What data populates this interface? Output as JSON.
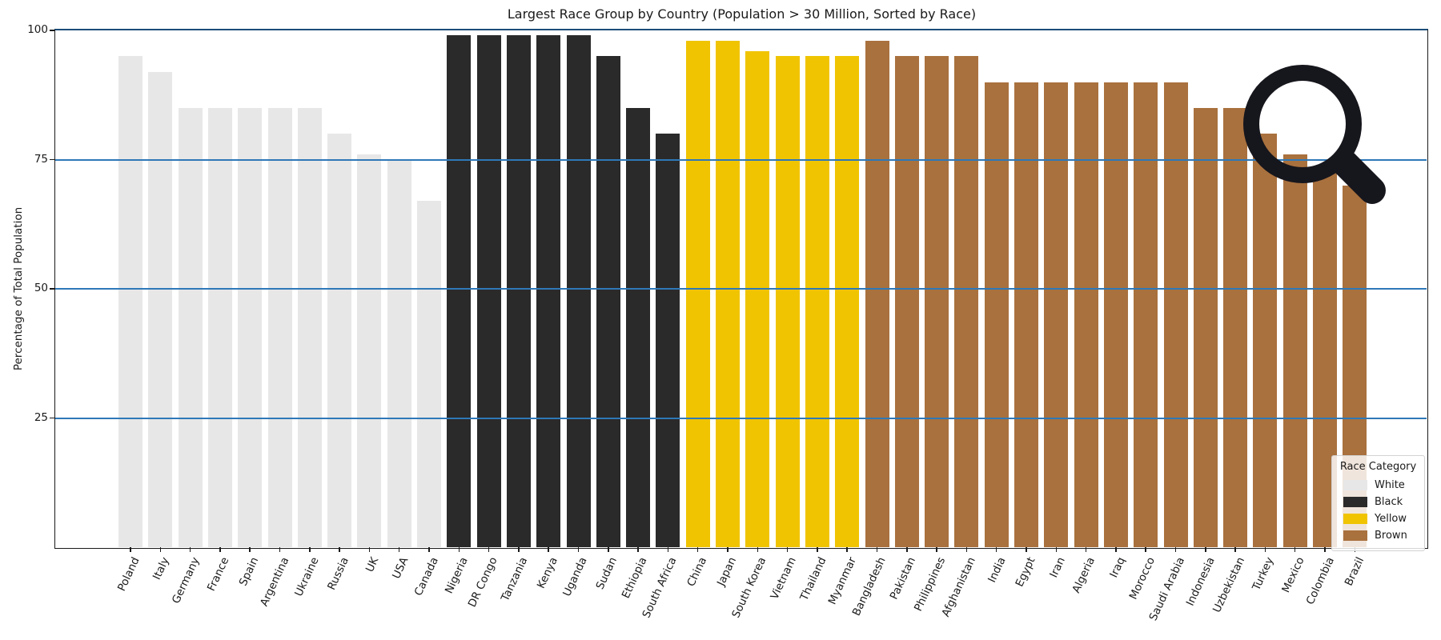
{
  "chart_data": {
    "type": "bar",
    "title": "Largest Race Group by Country (Population > 30 Million, Sorted by Race)",
    "ylabel": "Percentage of Total Population",
    "xlabel": "",
    "ylim": [
      0,
      100
    ],
    "yticks": [
      100,
      75,
      50,
      25
    ],
    "grid": "horizontal blue gridlines at 25/50/75/100 drawn over bars",
    "gridline_color": "#2E78B8",
    "legend": {
      "title": "Race Category",
      "position": "lower right",
      "entries": [
        {
          "label": "White",
          "color": "#E7E7E7"
        },
        {
          "label": "Black",
          "color": "#2A2A2A"
        },
        {
          "label": "Yellow",
          "color": "#F0C400"
        },
        {
          "label": "Brown",
          "color": "#A9713E"
        }
      ]
    },
    "points": [
      {
        "country": "Poland",
        "race": "White",
        "value": 95
      },
      {
        "country": "Italy",
        "race": "White",
        "value": 92
      },
      {
        "country": "Germany",
        "race": "White",
        "value": 85
      },
      {
        "country": "France",
        "race": "White",
        "value": 85
      },
      {
        "country": "Spain",
        "race": "White",
        "value": 85
      },
      {
        "country": "Argentina",
        "race": "White",
        "value": 85
      },
      {
        "country": "Ukraine",
        "race": "White",
        "value": 85
      },
      {
        "country": "Russia",
        "race": "White",
        "value": 80
      },
      {
        "country": "UK",
        "race": "White",
        "value": 76
      },
      {
        "country": "USA",
        "race": "White",
        "value": 75
      },
      {
        "country": "Canada",
        "race": "White",
        "value": 67
      },
      {
        "country": "Nigeria",
        "race": "Black",
        "value": 99
      },
      {
        "country": "DR Congo",
        "race": "Black",
        "value": 99
      },
      {
        "country": "Tanzania",
        "race": "Black",
        "value": 99
      },
      {
        "country": "Kenya",
        "race": "Black",
        "value": 99
      },
      {
        "country": "Uganda",
        "race": "Black",
        "value": 99
      },
      {
        "country": "Sudan",
        "race": "Black",
        "value": 95
      },
      {
        "country": "Ethiopia",
        "race": "Black",
        "value": 85
      },
      {
        "country": "South Africa",
        "race": "Black",
        "value": 80
      },
      {
        "country": "China",
        "race": "Yellow",
        "value": 98
      },
      {
        "country": "Japan",
        "race": "Yellow",
        "value": 98
      },
      {
        "country": "South Korea",
        "race": "Yellow",
        "value": 96
      },
      {
        "country": "Vietnam",
        "race": "Yellow",
        "value": 95
      },
      {
        "country": "Thailand",
        "race": "Yellow",
        "value": 95
      },
      {
        "country": "Myanmar",
        "race": "Yellow",
        "value": 95
      },
      {
        "country": "Bangladesh",
        "race": "Brown",
        "value": 98
      },
      {
        "country": "Pakistan",
        "race": "Brown",
        "value": 95
      },
      {
        "country": "Philippines",
        "race": "Brown",
        "value": 95
      },
      {
        "country": "Afghanistan",
        "race": "Brown",
        "value": 95
      },
      {
        "country": "India",
        "race": "Brown",
        "value": 90
      },
      {
        "country": "Egypt",
        "race": "Brown",
        "value": 90
      },
      {
        "country": "Iran",
        "race": "Brown",
        "value": 90
      },
      {
        "country": "Algeria",
        "race": "Brown",
        "value": 90
      },
      {
        "country": "Iraq",
        "race": "Brown",
        "value": 90
      },
      {
        "country": "Morocco",
        "race": "Brown",
        "value": 90
      },
      {
        "country": "Saudi Arabia",
        "race": "Brown",
        "value": 90
      },
      {
        "country": "Indonesia",
        "race": "Brown",
        "value": 85
      },
      {
        "country": "Uzbekistan",
        "race": "Brown",
        "value": 85
      },
      {
        "country": "Turkey",
        "race": "Brown",
        "value": 80
      },
      {
        "country": "Mexico",
        "race": "Brown",
        "value": 76
      },
      {
        "country": "Colombia",
        "race": "Brown",
        "value": 73
      },
      {
        "country": "Brazil",
        "race": "Brown",
        "value": 70
      }
    ]
  },
  "overlay": {
    "magnifier_icon": "large black magnifying-glass cursor overlay near upper-right of plot"
  }
}
